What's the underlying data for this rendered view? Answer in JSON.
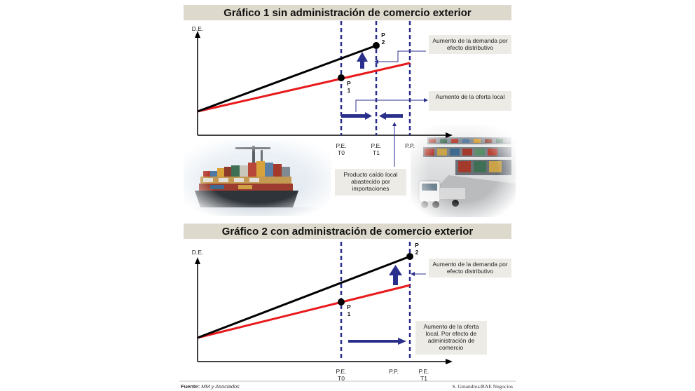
{
  "chart1": {
    "title": "Gráfico 1 sin administración de comercio exterior",
    "y_label": "D.E.",
    "x_labels": [
      {
        "line1": "P.E.",
        "line2": "T0"
      },
      {
        "line1": "P.E.",
        "line2": "T1"
      },
      {
        "line1": "P.P.",
        "line2": ""
      }
    ],
    "points": [
      {
        "l1": "P",
        "l2": "1"
      },
      {
        "l1": "P",
        "l2": "2"
      }
    ],
    "notes": {
      "demand": "Aumento de la demanda por efecto distributivo",
      "supply": "Aumento de la oferta local",
      "imports": "Producto caído local abastecido por importaciones"
    },
    "colors": {
      "demand_line": "#000000",
      "supply_line": "#e8191b",
      "arrows": "#2b2f8c"
    }
  },
  "chart2": {
    "title": "Gráfico 2 con administración de comercio exterior",
    "y_label": "D.E.",
    "x_labels": [
      {
        "line1": "P.E.",
        "line2": "T0"
      },
      {
        "line1": "P.P.",
        "line2": ""
      },
      {
        "line1": "P.E.",
        "line2": "T1"
      }
    ],
    "points": [
      {
        "l1": "P",
        "l2": "1"
      },
      {
        "l1": "P",
        "l2": "2"
      }
    ],
    "notes": {
      "demand": "Aumento de la demanda por efecto distributivo",
      "supply": "Aumento de la oferta local. Por efecto de administración de comercio"
    }
  },
  "illustrations": {
    "left": "container-ship-illustration",
    "right": "container-port-truck-illustration"
  },
  "footer": {
    "source_label": "Fuente:",
    "source_value": "MM y Asociados",
    "credit": "S. Ginandrea/BAE Negocios"
  }
}
